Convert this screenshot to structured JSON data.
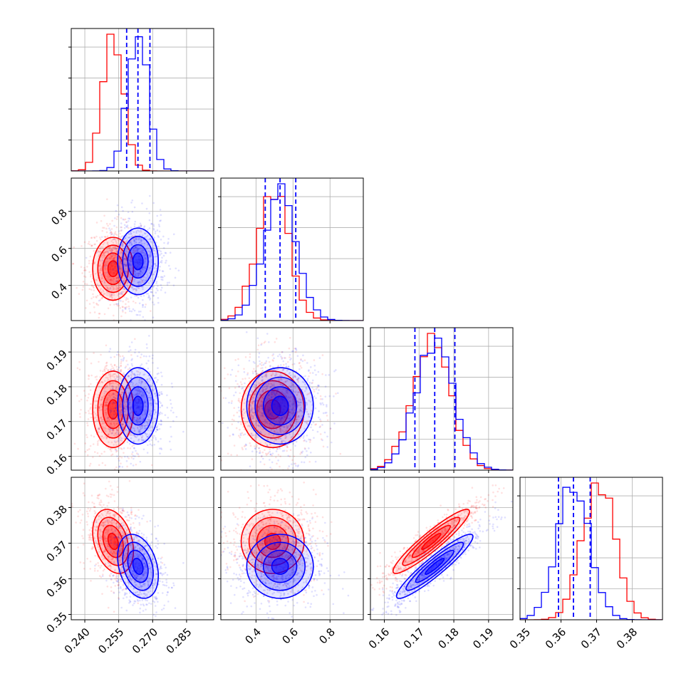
{
  "chart_data": {
    "type": "corner",
    "colors": {
      "red": "#ff0000",
      "blue": "#0000ff",
      "grid": "#b0b0b0",
      "axis": "#000000"
    },
    "params": [
      {
        "range": [
          0.234,
          0.297
        ],
        "ticks": [
          0.24,
          0.255,
          0.27,
          0.285
        ],
        "tick_labels": [
          "0.240",
          "0.255",
          "0.270",
          "0.285"
        ]
      },
      {
        "range": [
          0.21,
          0.98
        ],
        "ticks": [
          0.4,
          0.6,
          0.8
        ],
        "tick_labels": [
          "0.4",
          "0.6",
          "0.8"
        ]
      },
      {
        "range": [
          0.156,
          0.197
        ],
        "ticks": [
          0.16,
          0.17,
          0.18,
          0.19
        ],
        "tick_labels": [
          "0.16",
          "0.17",
          "0.18",
          "0.19"
        ]
      },
      {
        "range": [
          0.3485,
          0.3885
        ],
        "ticks": [
          0.35,
          0.36,
          0.37,
          0.38
        ],
        "tick_labels": [
          "0.35",
          "0.36",
          "0.37",
          "0.38"
        ]
      }
    ],
    "dist": {
      "red": {
        "mean": [
          0.2525,
          0.49,
          0.1735,
          0.3705
        ],
        "sd": [
          0.0045,
          0.085,
          0.0055,
          0.0045
        ],
        "corr": {
          "0-1": 0.0,
          "0-2": 0.0,
          "0-3": -0.3,
          "1-2": 0.0,
          "1-3": 0.0,
          "2-3": 0.93
        }
      },
      "blue": {
        "mean": [
          0.2635,
          0.53,
          0.1745,
          0.3635
        ],
        "sd": [
          0.0045,
          0.09,
          0.0055,
          0.0045
        ],
        "corr": {
          "0-1": 0.0,
          "0-2": 0.0,
          "0-3": -0.3,
          "1-2": 0.0,
          "1-3": 0.0,
          "2-3": 0.93
        }
      }
    },
    "quantile_lines": [
      [
        0.2585,
        0.2635,
        0.2688
      ],
      [
        0.45,
        0.53,
        0.615
      ],
      [
        0.1688,
        0.1745,
        0.1803
      ],
      [
        0.3593,
        0.3635,
        0.3682
      ]
    ],
    "grid": true
  }
}
